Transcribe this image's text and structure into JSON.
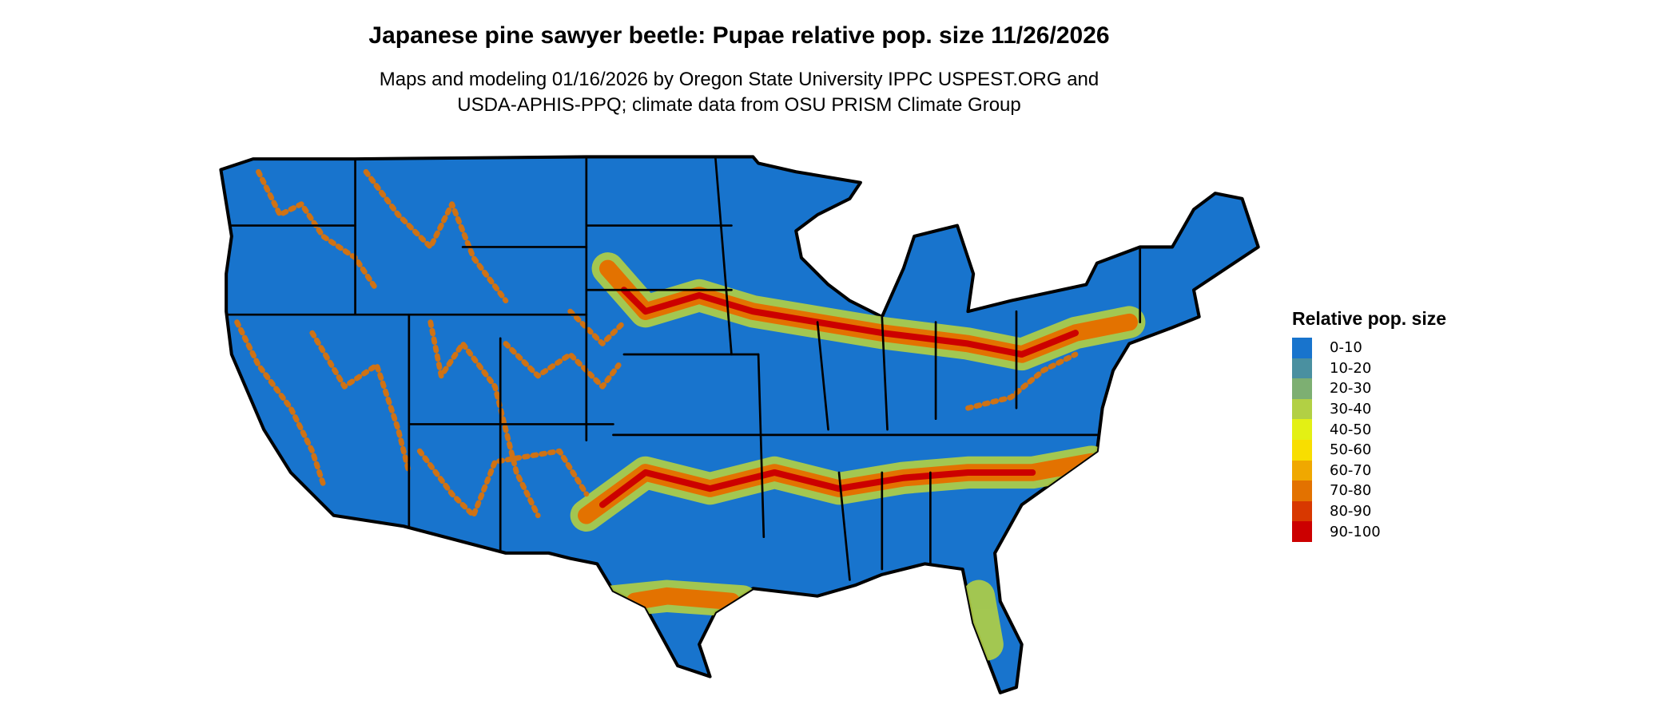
{
  "title": "Japanese pine sawyer beetle: Pupae relative pop. size 11/26/2026",
  "subtitle_line1": "Maps and modeling 01/16/2026 by Oregon State University IPPC USPEST.ORG and",
  "subtitle_line2": "USDA-APHIS-PPQ; climate data from OSU PRISM Climate Group",
  "legend": {
    "title": "Relative pop. size",
    "items": [
      {
        "label": "0-10",
        "color": "#1874CD"
      },
      {
        "label": "10-20",
        "color": "#4A90A0"
      },
      {
        "label": "20-30",
        "color": "#7DAF72"
      },
      {
        "label": "30-40",
        "color": "#B2D044"
      },
      {
        "label": "40-50",
        "color": "#E3F014"
      },
      {
        "label": "50-60",
        "color": "#F8DE00"
      },
      {
        "label": "60-70",
        "color": "#F0A800"
      },
      {
        "label": "70-80",
        "color": "#E37200"
      },
      {
        "label": "80-90",
        "color": "#D83800"
      },
      {
        "label": "90-100",
        "color": "#CC0000"
      }
    ]
  }
}
